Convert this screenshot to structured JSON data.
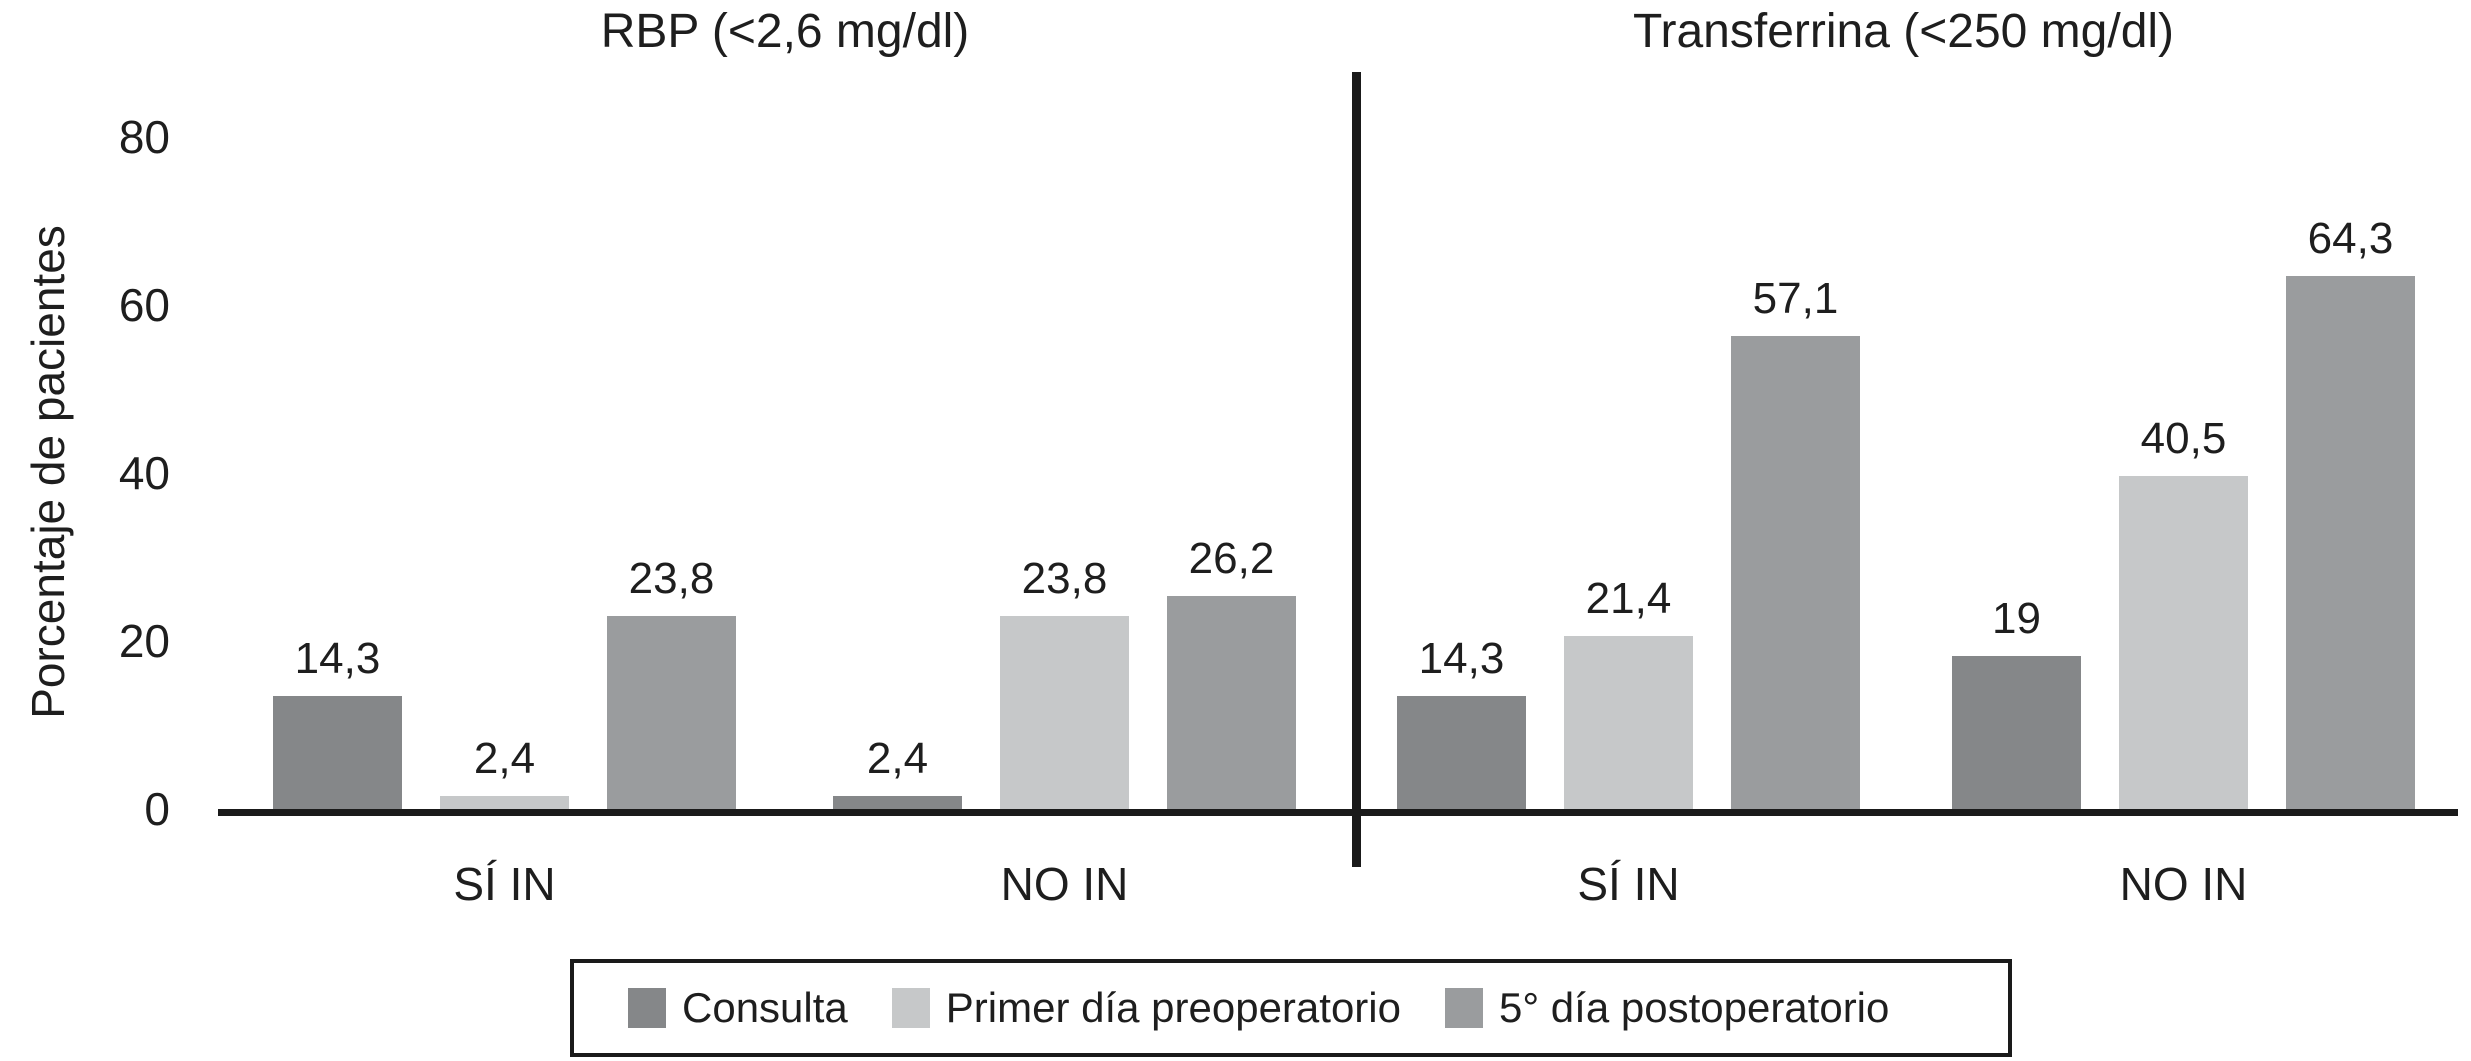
{
  "chart_data": {
    "type": "bar",
    "ylabel": "Porcentaje de pacientes",
    "ylim": [
      0,
      80
    ],
    "yticks": [
      0,
      20,
      40,
      60,
      80
    ],
    "grid": false,
    "legend_position": "bottom",
    "series": [
      {
        "name": "Consulta",
        "color": "#858789"
      },
      {
        "name": "Primer día preoperatorio",
        "color": "#c6c8c9"
      },
      {
        "name": "5° día postoperatorio",
        "color": "#9a9c9e"
      }
    ],
    "panels": [
      {
        "title": "RBP (<2,6 mg/dl)",
        "groups": [
          {
            "category": "SÍ IN",
            "bars": [
              {
                "series": "Consulta",
                "label": "14,3",
                "value": 14.3
              },
              {
                "series": "Primer día preoperatorio",
                "label": "2,4",
                "value": 2.4
              },
              {
                "series": "5° día postoperatorio",
                "label": "23,8",
                "value": 23.8
              }
            ]
          },
          {
            "category": "NO IN",
            "bars": [
              {
                "series": "Consulta",
                "label": "2,4",
                "value": 2.4
              },
              {
                "series": "Primer día preoperatorio",
                "label": "23,8",
                "value": 23.8
              },
              {
                "series": "5° día postoperatorio",
                "label": "26,2",
                "value": 26.2
              }
            ]
          }
        ]
      },
      {
        "title": "Transferrina (<250 mg/dl)",
        "groups": [
          {
            "category": "SÍ IN",
            "bars": [
              {
                "series": "Consulta",
                "label": "14,3",
                "value": 14.3
              },
              {
                "series": "Primer día preoperatorio",
                "label": "21,4",
                "value": 21.4
              },
              {
                "series": "5° día postoperatorio",
                "label": "57,1",
                "value": 57.1
              }
            ]
          },
          {
            "category": "NO IN",
            "bars": [
              {
                "series": "Consulta",
                "label": "19",
                "value": 19
              },
              {
                "series": "Primer día preoperatorio",
                "label": "40,5",
                "value": 40.5
              },
              {
                "series": "5° día postoperatorio",
                "label": "64,3",
                "value": 64.3
              }
            ]
          }
        ]
      }
    ]
  }
}
